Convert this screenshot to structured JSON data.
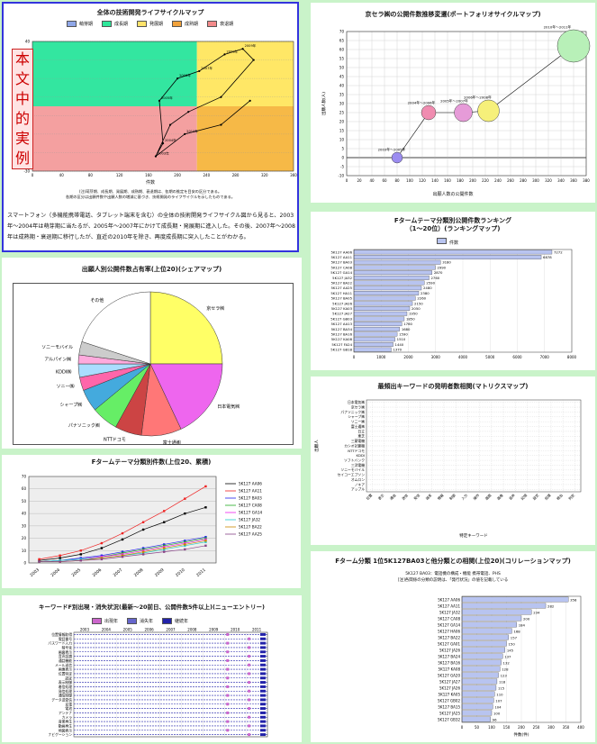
{
  "panel1": {
    "title": "全体の技術開発ライフサイクルマップ",
    "legend": [
      {
        "label": "萌芽期",
        "color": "#8fa7e8"
      },
      {
        "label": "成長期",
        "color": "#2ee79a"
      },
      {
        "label": "発展期",
        "color": "#ffe36b"
      },
      {
        "label": "成熟期",
        "color": "#f0a13a"
      },
      {
        "label": "衰退期",
        "color": "#f38a8a"
      }
    ],
    "stamp": "本文中的実例",
    "xlabel": "件数",
    "footnote1": "(注)萌芽期、成長期、発展期、成熟期、衰退期は、各期の推定を目安の区分である。",
    "footnote2": "各期の区分は出願件数や出願人数の増減に基づき、技術開発のライフサイクルを示したものである。",
    "paragraph": "スマートフォン（多機能携帯電話、タブレット端末を含む）の全体の技術開発ライフサイクル図から見ると、2003年〜2004年は萌芽期に当たるが、2005年〜2007年にかけて成長期・発展期に進入した。その後、2007年〜2008年は成熟期・衰退期に移行したが、直近の2010年を除き、再度成長期に突入したことがわかる。",
    "chart_data": {
      "type": "line",
      "x": [
        170,
        180,
        175,
        200,
        230,
        265,
        290,
        305,
        260,
        215,
        190,
        170,
        210,
        260,
        300
      ],
      "y": [
        -22,
        -15,
        8,
        20,
        24,
        33,
        36,
        30,
        10,
        2,
        -5,
        -22,
        -10,
        -5,
        8
      ],
      "point_labels": [
        "2003年",
        "2004年",
        "2005年",
        "2006年",
        "2007年",
        "2008年",
        "2009年",
        "",
        "",
        "",
        "",
        "",
        "2010年",
        "",
        ""
      ],
      "xlim": [
        0,
        360
      ],
      "ylim": [
        -30,
        40
      ]
    }
  },
  "panel2": {
    "title": "京セラ㈱の公開件数推移変遷(ポートフォリオサイクルマップ)",
    "xlabel": "出願人数の公開件数",
    "ylabel": "出願人数(人)",
    "chart_data": {
      "type": "scatter",
      "points": [
        {
          "label": "2003年〜2005年",
          "x": 80,
          "y": 0,
          "size": 6,
          "color": "#9b8cf0"
        },
        {
          "label": "2004年〜2006年",
          "x": 130,
          "y": 25,
          "size": 8,
          "color": "#f08cb0"
        },
        {
          "label": "2005年〜2007年",
          "x": 185,
          "y": 25,
          "size": 10,
          "color": "#e69bd8"
        },
        {
          "label": "2006年〜2008年",
          "x": 225,
          "y": 26,
          "size": 12,
          "color": "#f6f07a"
        },
        {
          "label": "2010年〜2011年",
          "x": 360,
          "y": 62,
          "size": 18,
          "color": "#b8f0b8"
        }
      ],
      "xlim": [
        0,
        380
      ],
      "ylim": [
        -10,
        70
      ],
      "xticks": [
        0,
        20,
        40,
        60,
        80,
        100,
        120,
        140,
        160,
        180,
        200,
        220,
        240,
        260,
        280,
        300,
        320,
        340,
        360,
        380
      ],
      "yticks": [
        -10,
        -5,
        0,
        5,
        10,
        15,
        20,
        25,
        30,
        35,
        40,
        45,
        50,
        55,
        60,
        65,
        70
      ]
    }
  },
  "panel3": {
    "title": "出願人別公開件数占有率(上位20)(シェアマップ)",
    "chart_data": {
      "type": "pie",
      "slices": [
        {
          "label": "京セラ㈱",
          "value": 25,
          "color": "#ffff66"
        },
        {
          "label": "日本電気㈱",
          "value": 18,
          "color": "#ee66ee"
        },
        {
          "label": "富士通㈱",
          "value": 9,
          "color": "#ff7777"
        },
        {
          "label": "NTTドコモ",
          "value": 6,
          "color": "#cc4444"
        },
        {
          "label": "パナソニック㈱",
          "value": 6,
          "color": "#66ee66"
        },
        {
          "label": "シャープ㈱",
          "value": 5,
          "color": "#44aadd"
        },
        {
          "label": "ソニー㈱",
          "value": 3,
          "color": "#ff66aa"
        },
        {
          "label": "KDDI㈱",
          "value": 3,
          "color": "#aaddff"
        },
        {
          "label": "アルパイン㈱",
          "value": 2,
          "color": "#ffaadd"
        },
        {
          "label": "ソニーモバイル",
          "value": 3,
          "color": "#cccccc"
        },
        {
          "label": "その他",
          "value": 20,
          "color": "#ffffff"
        }
      ]
    }
  },
  "panel4": {
    "title": "Fタームテーマ分類別件数(上位20、累積)",
    "chart_data": {
      "type": "line",
      "series": [
        {
          "name": "5K127 AA06",
          "values": [
            2,
            4,
            7,
            12,
            19,
            27,
            33,
            40,
            45
          ],
          "color": "#000000"
        },
        {
          "name": "5K127 AA11",
          "values": [
            3,
            6,
            10,
            16,
            24,
            33,
            42,
            52,
            62
          ],
          "color": "#ee2222"
        },
        {
          "name": "5K127 BA03",
          "values": [
            1,
            2,
            4,
            6,
            9,
            12,
            15,
            18,
            21
          ],
          "color": "#2222ee"
        },
        {
          "name": "5K127 CA08",
          "values": [
            1,
            2,
            3,
            5,
            8,
            11,
            14,
            17,
            20
          ],
          "color": "#22aa22"
        },
        {
          "name": "5K127 GA14",
          "values": [
            1,
            2,
            3,
            5,
            7,
            10,
            13,
            16,
            19
          ],
          "color": "#ee22ee"
        },
        {
          "name": "5K127 JA32",
          "values": [
            1,
            2,
            3,
            4,
            6,
            8,
            11,
            14,
            17
          ],
          "color": "#22cccc"
        },
        {
          "name": "5K127 BA22",
          "values": [
            1,
            1,
            2,
            4,
            6,
            9,
            12,
            15,
            18
          ],
          "color": "#cc8800"
        },
        {
          "name": "5K127 AA25",
          "values": [
            1,
            1,
            2,
            3,
            5,
            7,
            9,
            11,
            14
          ],
          "color": "#884488"
        }
      ],
      "categories": [
        "2003",
        "2004",
        "2005",
        "2006",
        "2007",
        "2008",
        "2009",
        "2010",
        "2011"
      ],
      "ylim": [
        0,
        70
      ],
      "yticks": [
        0,
        10,
        20,
        30,
        40,
        50,
        60,
        70
      ]
    }
  },
  "panel5": {
    "title": "キーワードF別出現・消失状況(最新〜20前日、公開件数5件以上)(ニューエントリー)",
    "legend": [
      {
        "label": "出現年",
        "color": "#cc66cc"
      },
      {
        "label": "消失年",
        "color": "#6666cc"
      },
      {
        "label": "継続年",
        "color": "#2222aa"
      }
    ],
    "years": [
      "2003",
      "2004",
      "2005",
      "2006",
      "2007",
      "2008",
      "2009",
      "2010",
      "2011"
    ],
    "rows": [
      "位置情報取得",
      "電話番号",
      "パスワード入力",
      "暗号化",
      "画面表示",
      "音声認識",
      "通話機能",
      "メール送信",
      "画像表示",
      "位置特定",
      "認証",
      "表示制御",
      "着信処理",
      "発信処理",
      "通信制御",
      "データ送受信",
      "充電",
      "電池",
      "アンテナ",
      "カメラ",
      "音楽再生",
      "動画再生",
      "地図表示",
      "ナビゲーション"
    ]
  },
  "panel6": {
    "title": "Fタームテーマ分類別公開件数ランキング（1〜20位）(ランキングマップ)",
    "legend_label": "件数",
    "chart_data": {
      "type": "bar",
      "categories": [
        "5K127 AA06",
        "5K127 AA11",
        "5K127 BA03",
        "5K127 CA08",
        "5K127 GA14",
        "5K127 JA32",
        "5K127 BA22",
        "5K127 AA25",
        "5K127 HA11",
        "5K127 BA05",
        "5K127 JA26",
        "5K127 KA03",
        "5K127 JA27",
        "5K127 GB03",
        "5K127 AA13",
        "5K127 BA34",
        "5K127 BA16",
        "5K127 KA08",
        "5K127 FA24",
        "5K127 GB18"
      ],
      "values": [
        7272,
        6878,
        3180,
        2990,
        2870,
        2760,
        2590,
        2480,
        2380,
        2260,
        2150,
        2050,
        1950,
        1850,
        1760,
        1680,
        1590,
        1510,
        1440,
        1370
      ],
      "xlim": [
        0,
        8000
      ],
      "xticks": [
        0,
        1000,
        2000,
        3000,
        4000,
        5000,
        6000,
        7000,
        8000
      ]
    }
  },
  "panel7": {
    "title": "最頻出キーワードの発明者数相関(マトリクスマップ)",
    "xlabel": "特定キーワード",
    "ylabel": "出願人",
    "rows": [
      "日本電気㈱",
      "京セラ㈱",
      "パナソニック㈱",
      "シャープ㈱",
      "ソニー㈱",
      "富士通㈱",
      "日立",
      "東芝",
      "三菱電機",
      "カシオ計算機",
      "NTTドコモ",
      "KDDI",
      "ソフトバンク",
      "三洋電機",
      "ソニーモバイル",
      "セイコーエプソン",
      "オムロン",
      "ノキア",
      "アップル"
    ],
    "cols": [
      "位置",
      "表示",
      "通信",
      "送信",
      "受信",
      "端末",
      "情報",
      "制御",
      "入力",
      "操作",
      "画面",
      "画像",
      "音声",
      "記憶",
      "設定",
      "処理",
      "検出",
      "判定"
    ]
  },
  "panel8": {
    "title": "Fターム分類 1位5K127BA03と他分類との相関(上位20)(コリレーションマップ)",
    "subtitle1": "5K127 BA03：電話機の構成・機能 携帯電話、PHS",
    "subtitle2": "[注]各関係の分類の説明は、「発行状況」の値を記載している",
    "xlabel": "件数(件)",
    "chart_data": {
      "type": "bar",
      "categories": [
        "5K127 AA06",
        "5K127 AA11",
        "5K127 JA32",
        "5K127 CA08",
        "5K127 GA14",
        "5K127 HA06",
        "5K127 BA22",
        "5K127 GA01",
        "5K127 JA26",
        "5K127 BA24",
        "5K127 BA16",
        "5K127 KA08",
        "5K127 GA20",
        "5K127 JA27",
        "5K127 JA26",
        "5K127 KA05",
        "5K127 GB02",
        "5K127 BA15",
        "5K127 JA25",
        "5K127 GB32"
      ],
      "values": [
        358,
        282,
        234,
        200,
        184,
        168,
        157,
        150,
        145,
        137,
        132,
        128,
        123,
        118,
        115,
        110,
        107,
        104,
        100,
        96
      ],
      "xlim": [
        0,
        400
      ],
      "xticks": [
        0,
        50,
        100,
        150,
        200,
        250,
        300,
        350,
        400
      ]
    }
  }
}
